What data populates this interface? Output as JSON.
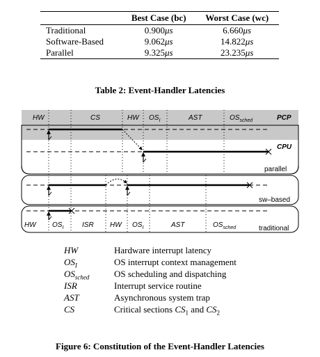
{
  "table": {
    "headers": [
      "",
      "Best Case (bc)",
      "Worst Case (wc)"
    ],
    "rows": [
      {
        "name": "Traditional",
        "best": "0.900",
        "worst": "6.660"
      },
      {
        "name": "Software-Based",
        "best": "9.062",
        "worst": "14.822"
      },
      {
        "name": "Parallel",
        "best": "9.325",
        "worst": "23.235"
      }
    ],
    "unit": "μs",
    "caption": "Table 2: Event-Handler Latencies"
  },
  "figure": {
    "top_labels": {
      "hw1": "HW",
      "cs": "CS",
      "hw2": "HW",
      "os": "OS",
      "os_sub": "I",
      "ast": "AST",
      "ossched": "OS",
      "ossched_sub": "sched",
      "pcp": "PCP"
    },
    "cpu_label": "CPU",
    "panel_parallel": "parallel",
    "panel_sw": "sw–based",
    "panel_traditional": "traditional",
    "bottom_labels": {
      "hw1": "HW",
      "os1": "OS",
      "os1_sub": "I",
      "isr": "ISR",
      "hw2": "HW",
      "os2": "OS",
      "os2_sub": "I",
      "ast": "AST",
      "ossched": "OS",
      "ossched_sub": "sched"
    },
    "caption": "Figure 6: Constitution of the Event-Handler Latencies"
  },
  "legend": [
    {
      "symbol": "HW",
      "sub": "",
      "desc": "Hardware interrupt latency"
    },
    {
      "symbol": "OS",
      "sub": "I",
      "desc": "OS interrupt context management"
    },
    {
      "symbol": "OS",
      "sub": "sched",
      "desc": "OS scheduling and dispatching"
    },
    {
      "symbol": "ISR",
      "sub": "",
      "desc": "Interrupt service routine"
    },
    {
      "symbol": "AST",
      "sub": "",
      "desc": "Asynchronous system trap"
    },
    {
      "symbol": "CS",
      "sub": "",
      "desc_prefix": "Critical sections ",
      "cs1": "CS",
      "cs1_sub": "1",
      "and": " and ",
      "cs2": "CS",
      "cs2_sub": "2"
    }
  ]
}
